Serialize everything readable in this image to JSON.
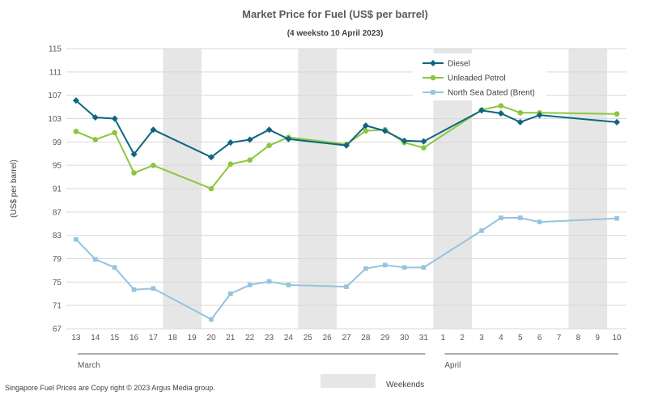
{
  "chart_data": {
    "type": "line",
    "title": "Market Price for Fuel (US$ per barrel)",
    "subtitle": "(4 weeksto 10 April 2023)",
    "ylabel": "(US$ per barrel)",
    "xlabel": "",
    "ylim": [
      67,
      115
    ],
    "yticks": [
      67,
      71,
      75,
      79,
      83,
      87,
      91,
      95,
      99,
      103,
      107,
      111,
      115
    ],
    "gridlines": true,
    "categories": [
      "13",
      "14",
      "15",
      "16",
      "17",
      "18",
      "19",
      "20",
      "21",
      "22",
      "23",
      "24",
      "25",
      "26",
      "27",
      "28",
      "29",
      "30",
      "31",
      "1",
      "2",
      "3",
      "4",
      "5",
      "6",
      "7",
      "8",
      "9",
      "10"
    ],
    "months": [
      {
        "label": "March",
        "start": "13",
        "end": "31"
      },
      {
        "label": "April",
        "start": "1",
        "end": "10"
      }
    ],
    "weekend_categories": [
      "18",
      "19",
      "25",
      "26",
      "1",
      "2",
      "8",
      "9"
    ],
    "weekends_label": "Weekends",
    "legend_position": "top-right",
    "series": [
      {
        "name": "Diesel",
        "color": "#0e6680",
        "marker": "diamond",
        "values": [
          106.1,
          103.2,
          103.0,
          96.9,
          101.1,
          null,
          null,
          96.4,
          98.9,
          99.4,
          101.1,
          99.5,
          null,
          null,
          98.4,
          101.8,
          100.9,
          99.2,
          99.1,
          null,
          null,
          104.4,
          103.9,
          102.4,
          103.6,
          null,
          null,
          null,
          102.4
        ]
      },
      {
        "name": "Unleaded Petrol",
        "color": "#8cc63f",
        "marker": "circle",
        "values": [
          100.8,
          99.4,
          100.6,
          93.7,
          95.0,
          null,
          null,
          91.0,
          95.2,
          95.9,
          98.4,
          99.8,
          null,
          null,
          98.6,
          100.9,
          101.1,
          98.9,
          98.0,
          null,
          null,
          104.5,
          105.2,
          104.0,
          104.0,
          null,
          null,
          null,
          103.8
        ]
      },
      {
        "name": "North Sea Dated (Brent)",
        "color": "#94c4de",
        "marker": "square",
        "values": [
          82.3,
          78.9,
          77.5,
          73.7,
          73.9,
          null,
          null,
          68.6,
          73.0,
          74.5,
          75.1,
          74.5,
          null,
          null,
          74.2,
          77.3,
          77.9,
          77.5,
          77.5,
          null,
          null,
          83.8,
          86.0,
          86.0,
          85.3,
          null,
          null,
          null,
          85.9
        ]
      }
    ]
  },
  "footer": {
    "copyright": "Singapore Fuel Prices are Copy right © 2023 Argus Media group."
  }
}
